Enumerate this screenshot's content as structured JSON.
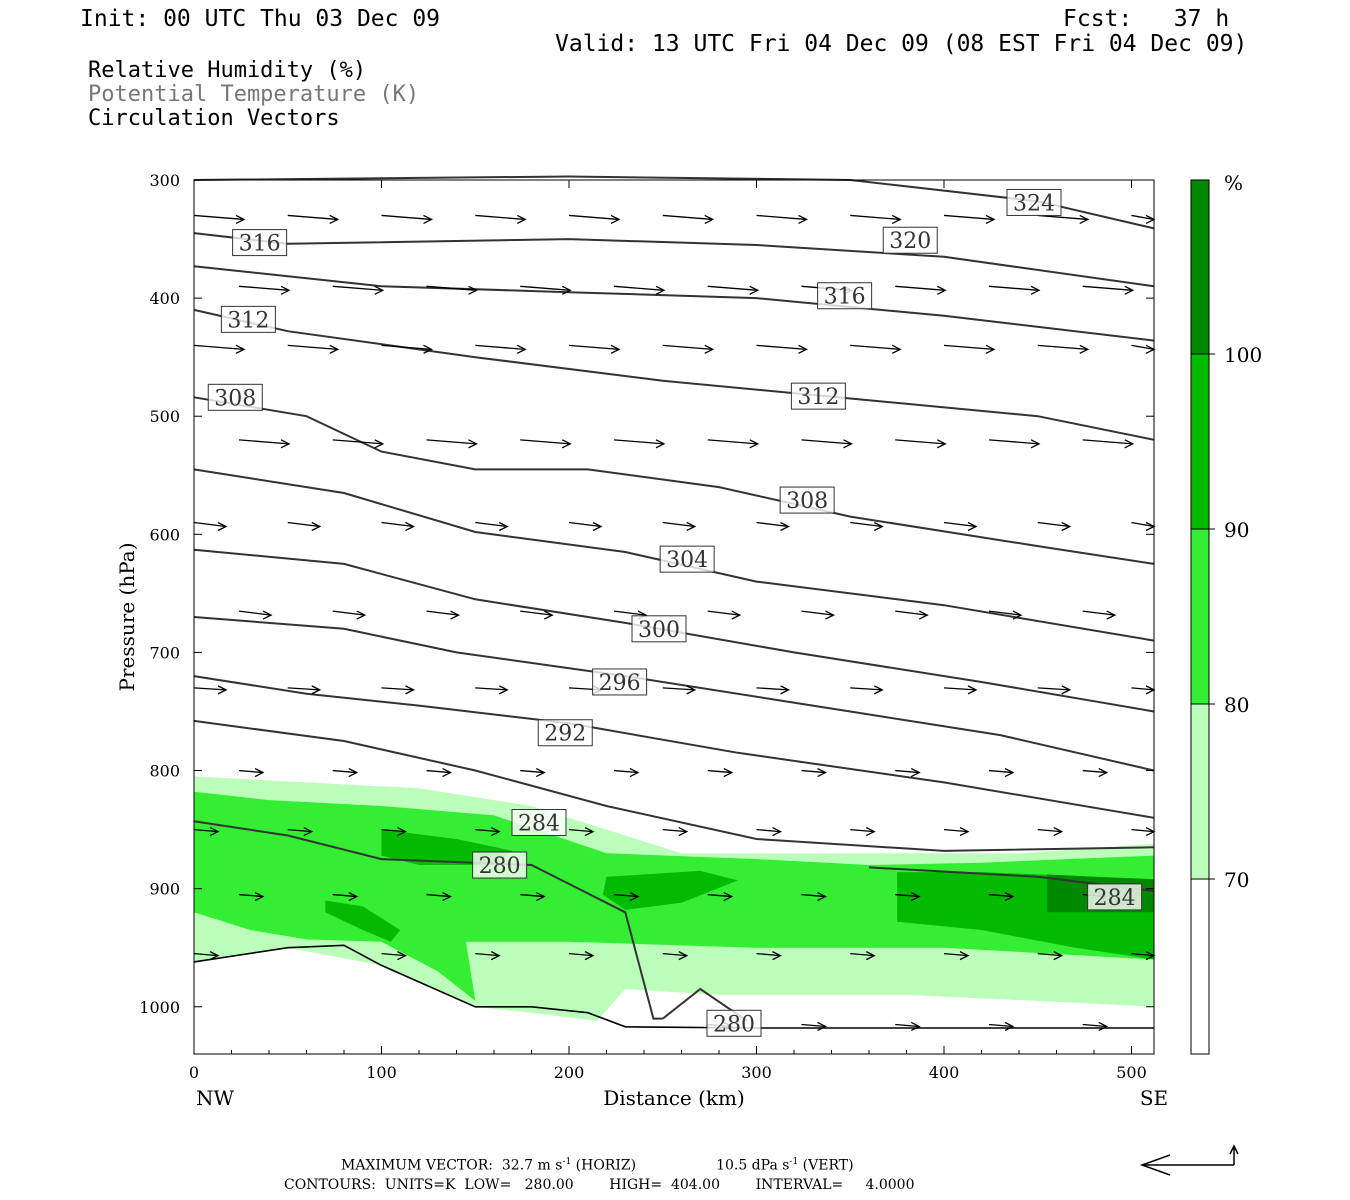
{
  "header": {
    "init": "Init: 00 UTC Thu 03 Dec 09",
    "fcst": "Fcst:   37 h",
    "valid": "Valid: 13 UTC Fri 04 Dec 09 (08 EST Fri 04 Dec 09)"
  },
  "fields": [
    {
      "label": "Relative Humidity (%)",
      "color": "#000000"
    },
    {
      "label": "Potential Temperature (K)",
      "color": "#777777"
    },
    {
      "label": "Circulation Vectors",
      "color": "#000000"
    }
  ],
  "chart_data": {
    "type": "cross-section",
    "xlabel": "Distance (km)",
    "ylabel": "Pressure (hPa)",
    "xlim": [
      0,
      512
    ],
    "ylim": [
      300,
      1040
    ],
    "x_ticks": [
      "0",
      "100",
      "200",
      "300",
      "400",
      "500"
    ],
    "y_ticks": [
      "300",
      "400",
      "500",
      "600",
      "700",
      "800",
      "900",
      "1000"
    ],
    "x_end_labels": {
      "left": "NW",
      "right": "SE"
    },
    "colorbar": {
      "unit": "%",
      "levels": [
        {
          "label": "70",
          "from": 70,
          "to": 80,
          "color": "#bbffbb"
        },
        {
          "label": "80",
          "from": 80,
          "to": 90,
          "color": "#33ee33"
        },
        {
          "label": "90",
          "from": 90,
          "to": 100,
          "color": "#00bb00"
        },
        {
          "label": "100",
          "from": 100,
          "to": 110,
          "color": "#008800"
        }
      ]
    },
    "isentropes": [
      {
        "label": "324",
        "label_at": [
          448,
          319
        ],
        "points": [
          [
            0,
            300
          ],
          [
            200,
            297
          ],
          [
            350,
            300
          ],
          [
            450,
            318
          ],
          [
            512,
            341
          ]
        ]
      },
      {
        "label": "320",
        "label_at": [
          382,
          351
        ],
        "points": [
          [
            0,
            345
          ],
          [
            50,
            354
          ],
          [
            200,
            350
          ],
          [
            300,
            355
          ],
          [
            400,
            365
          ],
          [
            512,
            390
          ]
        ]
      },
      {
        "label": "316",
        "label_at": [
          35,
          353
        ],
        "points": [
          [
            35,
            353
          ]
        ]
      },
      {
        "label": "316",
        "label_at": [
          347,
          398
        ],
        "points": [
          [
            0,
            373
          ],
          [
            100,
            390
          ],
          [
            200,
            395
          ],
          [
            300,
            400
          ],
          [
            400,
            415
          ],
          [
            512,
            436
          ]
        ]
      },
      {
        "label": "312",
        "label_at": [
          29,
          418
        ],
        "points": [
          [
            0,
            410
          ],
          [
            50,
            428
          ],
          [
            150,
            450
          ],
          [
            250,
            470
          ],
          [
            350,
            485
          ],
          [
            450,
            500
          ],
          [
            512,
            520
          ]
        ]
      },
      {
        "label": "312",
        "label_at": [
          333,
          483
        ],
        "points": [
          [
            333,
            483
          ]
        ]
      },
      {
        "label": "308",
        "label_at": [
          22,
          484
        ],
        "points": [
          [
            0,
            484
          ],
          [
            60,
            500
          ],
          [
            100,
            530
          ],
          [
            150,
            545
          ],
          [
            210,
            545
          ],
          [
            280,
            560
          ],
          [
            350,
            585
          ],
          [
            450,
            610
          ],
          [
            512,
            625
          ]
        ]
      },
      {
        "label": "308",
        "label_at": [
          327,
          571
        ],
        "points": [
          [
            327,
            571
          ]
        ]
      },
      {
        "label": "304",
        "label_at": [
          263,
          621
        ],
        "points": [
          [
            0,
            545
          ],
          [
            80,
            565
          ],
          [
            150,
            598
          ],
          [
            230,
            615
          ],
          [
            300,
            640
          ],
          [
            400,
            660
          ],
          [
            512,
            690
          ]
        ]
      },
      {
        "label": "300",
        "label_at": [
          248,
          680
        ],
        "points": [
          [
            0,
            613
          ],
          [
            80,
            625
          ],
          [
            150,
            655
          ],
          [
            230,
            675
          ],
          [
            320,
            700
          ],
          [
            420,
            725
          ],
          [
            512,
            750
          ]
        ]
      },
      {
        "label": "296",
        "label_at": [
          227,
          725
        ],
        "points": [
          [
            0,
            670
          ],
          [
            80,
            680
          ],
          [
            140,
            700
          ],
          [
            230,
            720
          ],
          [
            330,
            745
          ],
          [
            430,
            770
          ],
          [
            512,
            800
          ]
        ]
      },
      {
        "label": "292",
        "label_at": [
          198,
          768
        ],
        "points": [
          [
            0,
            720
          ],
          [
            60,
            735
          ],
          [
            120,
            745
          ],
          [
            200,
            760
          ],
          [
            290,
            785
          ],
          [
            400,
            810
          ],
          [
            512,
            840
          ]
        ]
      },
      {
        "label": "284",
        "label_at": [
          184,
          844
        ],
        "points": [
          [
            0,
            758
          ],
          [
            80,
            775
          ],
          [
            150,
            800
          ],
          [
            220,
            830
          ],
          [
            300,
            858
          ],
          [
            400,
            868
          ],
          [
            512,
            865
          ]
        ]
      },
      {
        "label": "280",
        "label_at": [
          163,
          880
        ],
        "points": [
          [
            0,
            843
          ],
          [
            50,
            855
          ],
          [
            100,
            875
          ],
          [
            180,
            880
          ],
          [
            230,
            920
          ],
          [
            245,
            1010
          ],
          [
            250,
            1010
          ]
        ]
      },
      {
        "label": "284",
        "label_at": [
          491,
          907
        ],
        "points": [
          [
            360,
            882
          ],
          [
            450,
            890
          ],
          [
            512,
            902
          ]
        ]
      },
      {
        "label": "280",
        "label_at": [
          288,
          1014
        ],
        "points": [
          [
            250,
            1010
          ],
          [
            270,
            985
          ],
          [
            295,
            1012
          ]
        ]
      }
    ],
    "terrain": [
      [
        0,
        962
      ],
      [
        50,
        950
      ],
      [
        80,
        948
      ],
      [
        100,
        965
      ],
      [
        150,
        1000
      ],
      [
        180,
        1000
      ],
      [
        210,
        1005
      ],
      [
        230,
        1017
      ],
      [
        300,
        1018
      ],
      [
        400,
        1018
      ],
      [
        512,
        1018
      ]
    ]
  },
  "footer": {
    "max_vector": "MAXIMUM VECTOR:  32.7 m s",
    "max_vector_exp": "-1",
    "horiz": " (HORIZ)",
    "vert_val": "10.5 dPa s",
    "vert_exp": "-1",
    "vert": " (VERT)",
    "contours": "CONTOURS:  UNITS=K  LOW=   280.00        HIGH=  404.00        INTERVAL=     4.0000"
  }
}
